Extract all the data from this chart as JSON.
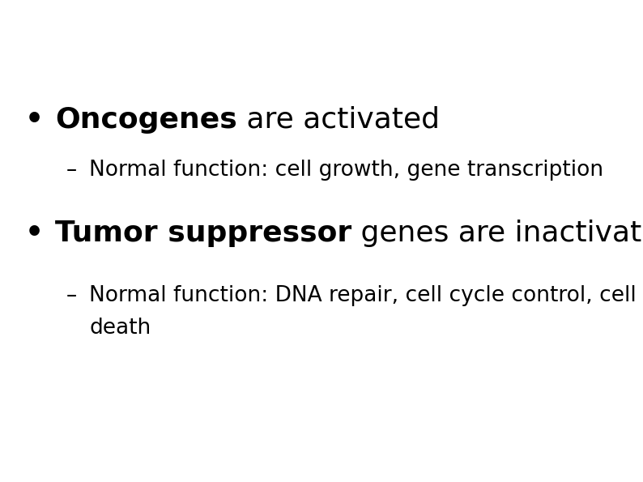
{
  "background_color": "#ffffff",
  "bullet1_bold": "Oncogenes",
  "bullet1_regular": " are activated",
  "sub1": "Normal function: cell growth, gene transcription",
  "bullet2_bold": "Tumor suppressor",
  "bullet2_regular": " genes are inactivated",
  "sub2_line1": "Normal function: DNA repair, cell cycle control, cell",
  "sub2_line2": "death",
  "bullet_char": "•",
  "dash_char": "–",
  "bullet_fontsize": 26,
  "sub_fontsize": 19,
  "text_color": "#000000",
  "figwidth": 7.94,
  "figheight": 5.95,
  "dpi": 100
}
